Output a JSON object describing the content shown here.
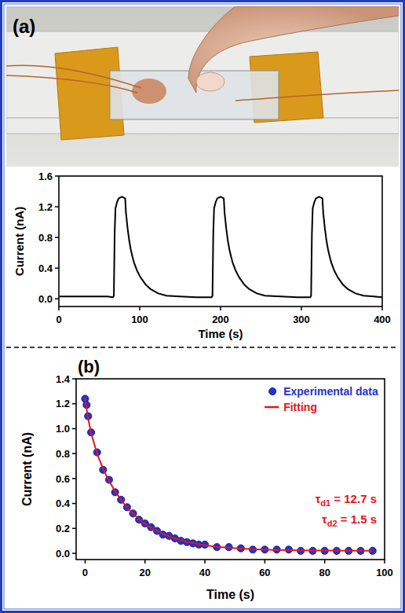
{
  "panels": [
    "(a)",
    "(b)"
  ],
  "chart_data": [
    {
      "type": "line",
      "xlabel": "Time (s)",
      "ylabel": "Current (nA)",
      "xlim": [
        0,
        400
      ],
      "xticks": [
        0,
        100,
        200,
        300,
        400
      ],
      "ylim": [
        -0.1,
        1.6
      ],
      "yticks": [
        {
          "value": 0,
          "label": "0.0"
        },
        0.4,
        0.8,
        1.2,
        1.6
      ],
      "color": "#000000",
      "x": [
        0,
        20,
        40,
        60,
        67,
        68,
        69,
        70,
        72,
        74,
        78,
        82,
        83,
        85,
        87,
        89,
        91,
        93,
        97,
        101,
        107,
        113,
        123,
        133,
        150,
        170,
        189,
        190,
        191,
        192,
        194,
        196,
        200,
        204,
        205,
        207,
        209,
        211,
        213,
        215,
        219,
        223,
        229,
        235,
        245,
        255,
        275,
        295,
        311,
        312,
        313,
        314,
        316,
        318,
        322,
        326,
        327,
        329,
        331,
        333,
        335,
        337,
        341,
        345,
        351,
        357,
        367,
        377,
        390,
        400
      ],
      "values": [
        0.03,
        0.03,
        0.03,
        0.03,
        0.02,
        0.04,
        0.85,
        1.18,
        1.26,
        1.31,
        1.33,
        1.31,
        1.12,
        0.92,
        0.76,
        0.64,
        0.55,
        0.47,
        0.36,
        0.28,
        0.19,
        0.13,
        0.07,
        0.04,
        0.03,
        0.02,
        0.02,
        0.04,
        0.85,
        1.18,
        1.26,
        1.31,
        1.33,
        1.31,
        1.12,
        0.92,
        0.76,
        0.64,
        0.55,
        0.47,
        0.36,
        0.28,
        0.19,
        0.13,
        0.07,
        0.04,
        0.03,
        0.02,
        0.02,
        0.04,
        0.85,
        1.18,
        1.26,
        1.31,
        1.33,
        1.31,
        1.12,
        0.92,
        0.76,
        0.64,
        0.55,
        0.47,
        0.36,
        0.28,
        0.19,
        0.13,
        0.07,
        0.04,
        0.03,
        0.02
      ]
    },
    {
      "type": "scatter",
      "xlabel": "Time (s)",
      "ylabel": "Current (nA)",
      "xlim": [
        -3,
        100
      ],
      "xticks": [
        0,
        20,
        40,
        60,
        80,
        100
      ],
      "ylim": [
        -0.05,
        1.4
      ],
      "yticks": [
        {
          "value": 0,
          "label": "0.0"
        },
        0.2,
        0.4,
        0.6,
        0.8,
        {
          "value": 1,
          "label": "1.0"
        },
        1.2,
        1.4
      ],
      "legend": "upper right",
      "annotations": [
        "τd1 = 12.7 s",
        "τd2 = 1.5 s"
      ],
      "x": [
        0,
        0.5,
        1,
        2,
        4,
        6,
        8,
        10,
        12,
        14,
        16,
        18,
        20,
        22,
        24,
        26,
        28,
        30,
        32,
        34,
        36,
        38,
        40,
        44,
        48,
        52,
        56,
        60,
        64,
        68,
        72,
        76,
        80,
        84,
        88,
        92,
        96
      ],
      "series": [
        {
          "name": "Experimental data",
          "type": "scatter",
          "marker": "circle",
          "color": "#2233cc",
          "values": [
            1.24,
            1.19,
            1.1,
            0.97,
            0.81,
            0.67,
            0.59,
            0.49,
            0.43,
            0.37,
            0.32,
            0.27,
            0.24,
            0.21,
            0.18,
            0.15,
            0.14,
            0.12,
            0.1,
            0.09,
            0.08,
            0.07,
            0.07,
            0.05,
            0.05,
            0.04,
            0.03,
            0.03,
            0.03,
            0.03,
            0.02,
            0.02,
            0.02,
            0.02,
            0.02,
            0.02,
            0.02
          ]
        },
        {
          "name": "Fitting",
          "type": "line",
          "line_style": "solid",
          "color": "#e8141c",
          "values": [
            1.25,
            1.158,
            1.083,
            0.964,
            0.799,
            0.678,
            0.58,
            0.498,
            0.428,
            0.369,
            0.318,
            0.275,
            0.237,
            0.206,
            0.179,
            0.156,
            0.136,
            0.119,
            0.105,
            0.092,
            0.082,
            0.073,
            0.065,
            0.053,
            0.044,
            0.038,
            0.033,
            0.029,
            0.027,
            0.025,
            0.024,
            0.023,
            0.022,
            0.022,
            0.021,
            0.021,
            0.021
          ]
        }
      ]
    }
  ]
}
